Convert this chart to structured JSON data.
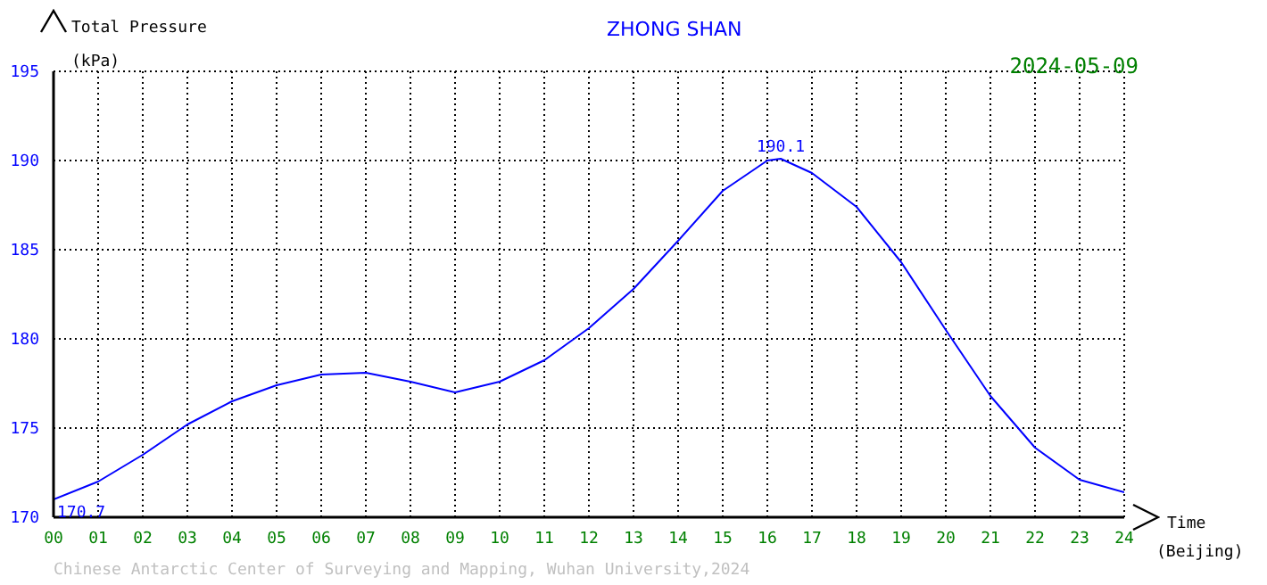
{
  "chart_data": {
    "type": "line",
    "title": "ZHONG SHAN",
    "subtitle": "2024-05-09",
    "xlabel": "Time (Beijing)",
    "ylabel": "Total Pressure (kPa)",
    "x": [
      0,
      1,
      2,
      3,
      4,
      5,
      6,
      7,
      8,
      9,
      10,
      11,
      12,
      13,
      14,
      15,
      16,
      16.3,
      17,
      18,
      19,
      20,
      21,
      22,
      23,
      24
    ],
    "series": [
      {
        "color": "#0000ff",
        "values": [
          171.0,
          172.0,
          173.5,
          175.2,
          176.5,
          177.4,
          178.0,
          178.1,
          177.6,
          177.0,
          177.6,
          178.8,
          180.6,
          182.8,
          185.5,
          188.3,
          190.0,
          190.1,
          189.3,
          187.4,
          184.3,
          180.5,
          176.8,
          173.9,
          172.1,
          171.4
        ]
      }
    ],
    "xlim": [
      0,
      24
    ],
    "xticks": [
      {
        "value": 0,
        "label": "00"
      },
      {
        "value": 1,
        "label": "01"
      },
      {
        "value": 2,
        "label": "02"
      },
      {
        "value": 3,
        "label": "03"
      },
      {
        "value": 4,
        "label": "04"
      },
      {
        "value": 5,
        "label": "05"
      },
      {
        "value": 6,
        "label": "06"
      },
      {
        "value": 7,
        "label": "07"
      },
      {
        "value": 8,
        "label": "08"
      },
      {
        "value": 9,
        "label": "09"
      },
      {
        "value": 10,
        "label": "10"
      },
      {
        "value": 11,
        "label": "11"
      },
      {
        "value": 12,
        "label": "12"
      },
      {
        "value": 13,
        "label": "13"
      },
      {
        "value": 14,
        "label": "14"
      },
      {
        "value": 15,
        "label": "15"
      },
      {
        "value": 16,
        "label": "16"
      },
      {
        "value": 17,
        "label": "17"
      },
      {
        "value": 18,
        "label": "18"
      },
      {
        "value": 19,
        "label": "19"
      },
      {
        "value": 20,
        "label": "20"
      },
      {
        "value": 21,
        "label": "21"
      },
      {
        "value": 22,
        "label": "22"
      },
      {
        "value": 23,
        "label": "23"
      },
      {
        "value": 24,
        "label": "24"
      }
    ],
    "ylim": [
      170,
      195
    ],
    "yticks": [
      170,
      175,
      180,
      185,
      190,
      195
    ],
    "grid": true,
    "marker": "none",
    "line_style": "solid",
    "annotations": [
      {
        "text": "190.1",
        "x": 16.3,
        "y": 190.1
      },
      {
        "text": "170.7",
        "x": 0,
        "y": 170.7
      },
      "Chinese Antarctic Center of Surveying and Mapping, Wuhan University,2024"
    ]
  }
}
